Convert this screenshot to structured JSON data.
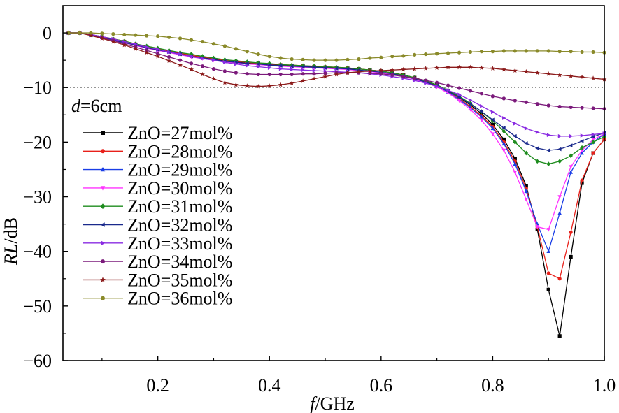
{
  "chart_data": {
    "type": "line",
    "xlabel_var": "f",
    "xlabel_unit": "/GHz",
    "ylabel_var": "RL",
    "ylabel_unit": "/dB",
    "xlim": [
      0.03,
      1.0
    ],
    "ylim": [
      -60,
      5
    ],
    "xticks": [
      0.2,
      0.4,
      0.6,
      0.8,
      1.0
    ],
    "xtick_labels": [
      "0.2",
      "0.4",
      "0.6",
      "0.8",
      "1.0"
    ],
    "yticks": [
      0,
      -10,
      -20,
      -30,
      -40,
      -50,
      -60
    ],
    "ytick_labels": [
      "0",
      "−10",
      "−20",
      "−30",
      "−40",
      "−50",
      "−60"
    ],
    "reference_line": {
      "y": -10,
      "style": "dotted"
    },
    "annotation": {
      "var": "d",
      "text": "=6cm"
    },
    "grid": false,
    "legend_position": "left",
    "x": [
      0.04,
      0.06,
      0.08,
      0.1,
      0.12,
      0.14,
      0.16,
      0.18,
      0.2,
      0.22,
      0.24,
      0.26,
      0.28,
      0.3,
      0.32,
      0.34,
      0.36,
      0.38,
      0.4,
      0.42,
      0.44,
      0.46,
      0.48,
      0.5,
      0.52,
      0.54,
      0.56,
      0.58,
      0.6,
      0.62,
      0.64,
      0.66,
      0.68,
      0.7,
      0.72,
      0.74,
      0.76,
      0.78,
      0.8,
      0.82,
      0.84,
      0.86,
      0.88,
      0.9,
      0.92,
      0.94,
      0.96,
      0.98,
      1.0
    ],
    "series": [
      {
        "name": "ZnO=27mol%",
        "color": "#000000",
        "marker": "square",
        "values": [
          0,
          0,
          -0.4,
          -0.8,
          -1.2,
          -1.6,
          -2.1,
          -2.6,
          -3.0,
          -3.4,
          -3.8,
          -4.1,
          -4.5,
          -4.8,
          -5.1,
          -5.3,
          -5.5,
          -5.6,
          -5.8,
          -5.9,
          -6.0,
          -6.1,
          -6.2,
          -6.3,
          -6.4,
          -6.5,
          -6.6,
          -6.8,
          -7.0,
          -7.3,
          -7.7,
          -8.2,
          -8.8,
          -9.5,
          -10.6,
          -11.8,
          -13.2,
          -14.8,
          -16.8,
          -19.5,
          -23.0,
          -28.0,
          -36.0,
          -47.0,
          -55.5,
          -41.0,
          -27.5,
          -22.0,
          -19.5
        ]
      },
      {
        "name": "ZnO=28mol%",
        "color": "#e8201a",
        "marker": "circle",
        "values": [
          0,
          0,
          -0.3,
          -0.7,
          -1.1,
          -1.5,
          -2.0,
          -2.5,
          -2.9,
          -3.3,
          -3.7,
          -4.1,
          -4.4,
          -4.7,
          -5.0,
          -5.2,
          -5.4,
          -5.6,
          -5.7,
          -5.8,
          -5.9,
          -6.0,
          -6.1,
          -6.2,
          -6.3,
          -6.4,
          -6.6,
          -6.8,
          -7.0,
          -7.3,
          -7.7,
          -8.2,
          -8.8,
          -9.6,
          -10.7,
          -12.0,
          -13.5,
          -15.2,
          -17.2,
          -20.0,
          -23.5,
          -28.5,
          -35.5,
          -44.0,
          -45.0,
          -36.5,
          -27.0,
          -22.0,
          -19.5
        ]
      },
      {
        "name": "ZnO=29mol%",
        "color": "#1a3ee6",
        "marker": "triangle-up",
        "values": [
          0,
          0,
          -0.4,
          -0.8,
          -1.2,
          -1.7,
          -2.2,
          -2.7,
          -3.1,
          -3.5,
          -3.9,
          -4.3,
          -4.6,
          -4.9,
          -5.2,
          -5.4,
          -5.6,
          -5.8,
          -5.9,
          -6.0,
          -6.1,
          -6.2,
          -6.3,
          -6.4,
          -6.5,
          -6.6,
          -6.8,
          -7.0,
          -7.2,
          -7.5,
          -7.9,
          -8.4,
          -9.0,
          -9.8,
          -10.9,
          -12.2,
          -13.7,
          -15.4,
          -17.5,
          -20.3,
          -24.0,
          -29.0,
          -35.0,
          -40.0,
          -33.0,
          -25.5,
          -22.0,
          -20.0,
          -18.5
        ]
      },
      {
        "name": "ZnO=30mol%",
        "color": "#ff33ff",
        "marker": "triangle-down",
        "values": [
          0,
          0,
          -0.4,
          -0.9,
          -1.3,
          -1.8,
          -2.3,
          -2.8,
          -3.2,
          -3.6,
          -4.0,
          -4.4,
          -4.7,
          -5.0,
          -5.3,
          -5.5,
          -5.7,
          -5.8,
          -6.0,
          -6.1,
          -6.2,
          -6.3,
          -6.4,
          -6.5,
          -6.6,
          -6.7,
          -6.9,
          -7.1,
          -7.3,
          -7.6,
          -8.0,
          -8.5,
          -9.1,
          -9.9,
          -11.0,
          -12.4,
          -14.0,
          -16.0,
          -18.5,
          -21.5,
          -25.5,
          -30.5,
          -35.5,
          -36.0,
          -30.0,
          -24.5,
          -21.5,
          -19.5,
          -18.5
        ]
      },
      {
        "name": "ZnO=31mol%",
        "color": "#1e8c1e",
        "marker": "diamond",
        "values": [
          0,
          0,
          -0.3,
          -0.7,
          -1.1,
          -1.5,
          -2.0,
          -2.4,
          -2.8,
          -3.2,
          -3.6,
          -3.9,
          -4.3,
          -4.6,
          -4.9,
          -5.1,
          -5.3,
          -5.5,
          -5.6,
          -5.8,
          -5.9,
          -6.0,
          -6.1,
          -6.2,
          -6.3,
          -6.4,
          -6.6,
          -6.8,
          -7.0,
          -7.3,
          -7.7,
          -8.2,
          -8.8,
          -9.5,
          -10.5,
          -11.6,
          -12.9,
          -14.4,
          -16.1,
          -18.0,
          -20.0,
          -22.0,
          -23.5,
          -24.0,
          -23.5,
          -22.5,
          -21.0,
          -20.0,
          -19.0
        ]
      },
      {
        "name": "ZnO=32mol%",
        "color": "#1a2a8c",
        "marker": "triangle-left",
        "values": [
          0,
          0,
          -0.4,
          -0.8,
          -1.3,
          -1.8,
          -2.2,
          -2.7,
          -3.1,
          -3.5,
          -3.9,
          -4.3,
          -4.6,
          -4.9,
          -5.2,
          -5.4,
          -5.6,
          -5.7,
          -5.9,
          -6.0,
          -6.1,
          -6.2,
          -6.3,
          -6.4,
          -6.5,
          -6.6,
          -6.8,
          -7.0,
          -7.2,
          -7.5,
          -7.9,
          -8.4,
          -9.0,
          -9.7,
          -10.7,
          -11.8,
          -13.0,
          -14.4,
          -15.9,
          -17.4,
          -18.9,
          -20.2,
          -21.1,
          -21.5,
          -21.3,
          -20.6,
          -19.8,
          -19.0,
          -18.3
        ]
      },
      {
        "name": "ZnO=33mol%",
        "color": "#8a2be2",
        "marker": "triangle-right",
        "values": [
          0,
          0,
          -0.3,
          -0.7,
          -1.1,
          -1.6,
          -2.1,
          -2.6,
          -3.0,
          -3.5,
          -3.9,
          -4.3,
          -4.7,
          -5.0,
          -5.4,
          -5.7,
          -6.0,
          -6.2,
          -6.4,
          -6.6,
          -6.7,
          -6.8,
          -6.9,
          -7.0,
          -7.1,
          -7.2,
          -7.3,
          -7.5,
          -7.7,
          -8.0,
          -8.3,
          -8.7,
          -9.2,
          -9.8,
          -10.5,
          -11.3,
          -12.3,
          -13.4,
          -14.5,
          -15.6,
          -16.6,
          -17.5,
          -18.2,
          -18.7,
          -18.9,
          -18.9,
          -18.8,
          -18.6,
          -18.4
        ]
      },
      {
        "name": "ZnO=34mol%",
        "color": "#7b1a7b",
        "marker": "circle",
        "values": [
          0,
          0,
          -0.4,
          -0.9,
          -1.4,
          -2.0,
          -2.6,
          -3.2,
          -3.8,
          -4.4,
          -5.0,
          -5.6,
          -6.1,
          -6.6,
          -7.0,
          -7.3,
          -7.5,
          -7.6,
          -7.6,
          -7.6,
          -7.6,
          -7.5,
          -7.5,
          -7.4,
          -7.3,
          -7.3,
          -7.3,
          -7.4,
          -7.5,
          -7.7,
          -8.0,
          -8.3,
          -8.7,
          -9.1,
          -9.6,
          -10.1,
          -10.6,
          -11.1,
          -11.6,
          -12.0,
          -12.4,
          -12.7,
          -13.0,
          -13.3,
          -13.5,
          -13.6,
          -13.7,
          -13.8,
          -13.9
        ]
      },
      {
        "name": "ZnO=35mol%",
        "color": "#8b1a1a",
        "marker": "star",
        "values": [
          0,
          0,
          -0.5,
          -1.0,
          -1.6,
          -2.2,
          -2.9,
          -3.6,
          -4.3,
          -5.1,
          -5.9,
          -6.7,
          -7.6,
          -8.4,
          -9.1,
          -9.5,
          -9.7,
          -9.8,
          -9.7,
          -9.5,
          -9.2,
          -8.8,
          -8.4,
          -8.0,
          -7.6,
          -7.3,
          -7.1,
          -7.0,
          -6.9,
          -6.8,
          -6.7,
          -6.6,
          -6.5,
          -6.4,
          -6.3,
          -6.3,
          -6.3,
          -6.4,
          -6.5,
          -6.7,
          -6.9,
          -7.1,
          -7.3,
          -7.5,
          -7.7,
          -7.9,
          -8.1,
          -8.3,
          -8.5
        ]
      },
      {
        "name": "ZnO=36mol%",
        "color": "#8a8a2a",
        "marker": "circle",
        "values": [
          0,
          0,
          0,
          -0.1,
          -0.2,
          -0.3,
          -0.4,
          -0.5,
          -0.6,
          -0.8,
          -1.0,
          -1.3,
          -1.6,
          -2.0,
          -2.4,
          -2.9,
          -3.4,
          -3.9,
          -4.3,
          -4.6,
          -4.8,
          -4.9,
          -5.0,
          -5.0,
          -5.0,
          -4.9,
          -4.8,
          -4.6,
          -4.5,
          -4.3,
          -4.2,
          -4.0,
          -3.9,
          -3.8,
          -3.7,
          -3.6,
          -3.5,
          -3.4,
          -3.4,
          -3.3,
          -3.3,
          -3.3,
          -3.3,
          -3.3,
          -3.4,
          -3.4,
          -3.5,
          -3.5,
          -3.6
        ]
      }
    ]
  }
}
